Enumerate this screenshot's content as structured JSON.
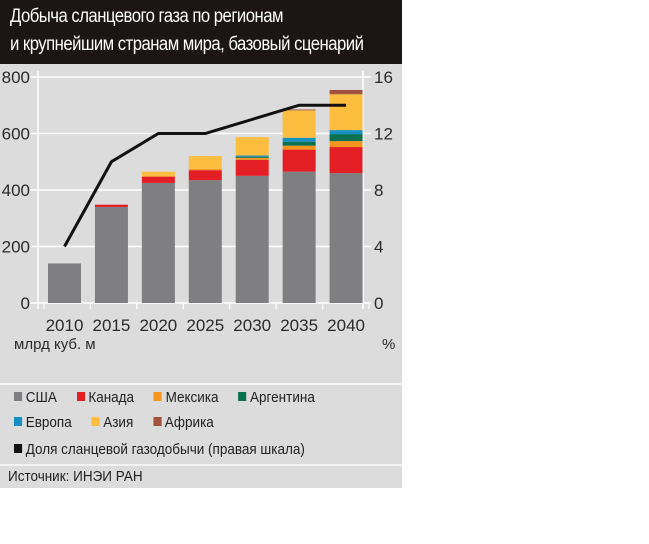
{
  "title": {
    "line1": "Добыча сланцевого газа по регионам",
    "line2": "и крупнейшим странам мира, базовый сценарий"
  },
  "chart_data": {
    "type": "bar",
    "stacked": true,
    "title": "Добыча сланцевого газа по регионам и крупнейшим странам мира, базовый сценарий",
    "categories": [
      "2010",
      "2015",
      "2020",
      "2025",
      "2030",
      "2035",
      "2040"
    ],
    "xlabel": "",
    "ylabel": "млрд куб. м",
    "y2label": "%",
    "ylim": [
      0,
      800
    ],
    "yticks": [
      0,
      200,
      400,
      600,
      800
    ],
    "y2lim": [
      0,
      16
    ],
    "y2ticks": [
      0,
      4,
      8,
      12,
      16
    ],
    "grid": true,
    "series": [
      {
        "name": "США",
        "color": "#7f7f81",
        "values": [
          140,
          340,
          425,
          435,
          450,
          465,
          460
        ]
      },
      {
        "name": "Канада",
        "color": "#e31e24",
        "values": [
          0,
          8,
          22,
          35,
          57,
          78,
          92
        ]
      },
      {
        "name": "Мексика",
        "color": "#f7941d",
        "values": [
          0,
          0,
          3,
          5,
          7,
          14,
          21
        ]
      },
      {
        "name": "Аргентина",
        "color": "#0a7150",
        "values": [
          0,
          0,
          0,
          0,
          4,
          14,
          25
        ]
      },
      {
        "name": "Европа",
        "color": "#1690c4",
        "values": [
          0,
          0,
          0,
          0,
          4,
          14,
          14
        ]
      },
      {
        "name": "Азия",
        "color": "#fdbd3f",
        "values": [
          0,
          0,
          15,
          45,
          65,
          97,
          127
        ]
      },
      {
        "name": "Африка",
        "color": "#a0523c",
        "values": [
          0,
          0,
          0,
          0,
          0,
          3,
          15
        ]
      }
    ],
    "line": {
      "name": "Доля сланцевой газодобычи (правая шкала)",
      "color": "#111111",
      "axis": "right",
      "values": [
        4,
        10,
        12,
        12,
        13,
        14,
        14
      ]
    },
    "legend_position": "bottom"
  },
  "legend": {
    "row1": [
      {
        "label": "США",
        "color": "#7f7f81"
      },
      {
        "label": "Канада",
        "color": "#e31e24"
      },
      {
        "label": "Мексика",
        "color": "#f7941d"
      },
      {
        "label": "Аргентина",
        "color": "#0a7150"
      }
    ],
    "row2": [
      {
        "label": "Европа",
        "color": "#1690c4"
      },
      {
        "label": "Азия",
        "color": "#fdbd3f"
      },
      {
        "label": "Африка",
        "color": "#a0523c"
      }
    ],
    "row3": [
      {
        "label": "Доля сланцевой газодобычи (правая шкала)",
        "color": "#111111"
      }
    ]
  },
  "source": "Источник: ИНЭИ РАН"
}
